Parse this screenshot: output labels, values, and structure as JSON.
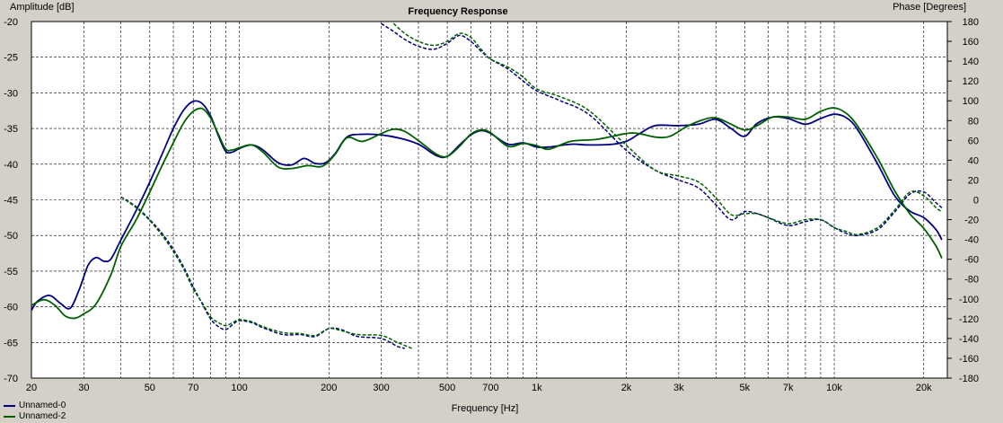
{
  "chart_data": {
    "type": "line",
    "title": "Frequency Response",
    "xlabel": "Frequency [Hz]",
    "ylabel_left": "Amplitude [dB]",
    "ylabel_right": "Phase [Degrees]",
    "x_scale": "log",
    "xlim": [
      20,
      24000
    ],
    "ylim_left": [
      -70,
      -20
    ],
    "ylim_right": [
      -180,
      180
    ],
    "grid": true,
    "legend_position": "bottom-left",
    "x_tick_labels": [
      "20",
      "30",
      "50",
      "70",
      "100",
      "200",
      "300",
      "500",
      "700",
      "1k",
      "2k",
      "3k",
      "5k",
      "7k",
      "10k",
      "20k"
    ],
    "x_tick_values": [
      20,
      30,
      50,
      70,
      100,
      200,
      300,
      500,
      700,
      1000,
      2000,
      3000,
      5000,
      7000,
      10000,
      20000
    ],
    "y_left_tick_labels": [
      "-20",
      "-25",
      "-30",
      "-35",
      "-40",
      "-45",
      "-50",
      "-55",
      "-60",
      "-65",
      "-70"
    ],
    "y_left_tick_values": [
      -20,
      -25,
      -30,
      -35,
      -40,
      -45,
      -50,
      -55,
      -60,
      -65,
      -70
    ],
    "y_right_tick_labels": [
      "180",
      "160",
      "140",
      "120",
      "100",
      "80",
      "60",
      "40",
      "20",
      "0",
      "-20",
      "-40",
      "-60",
      "-80",
      "-100",
      "-120",
      "-140",
      "-160",
      "-180"
    ],
    "y_right_tick_values": [
      180,
      160,
      140,
      120,
      100,
      80,
      60,
      40,
      20,
      0,
      -20,
      -40,
      -60,
      -80,
      -100,
      -120,
      -140,
      -160,
      -180
    ],
    "series": [
      {
        "name": "Unnamed-0",
        "color": "#000080",
        "amplitude": [
          [
            20,
            -60.5
          ],
          [
            21,
            -59.2
          ],
          [
            23,
            -58.4
          ],
          [
            25,
            -59.5
          ],
          [
            27,
            -60.2
          ],
          [
            29,
            -57.5
          ],
          [
            31,
            -54.2
          ],
          [
            33,
            -53.1
          ],
          [
            35,
            -53.6
          ],
          [
            37,
            -53.3
          ],
          [
            40,
            -50.6
          ],
          [
            45,
            -46.5
          ],
          [
            50,
            -42.5
          ],
          [
            55,
            -38.6
          ],
          [
            60,
            -35.0
          ],
          [
            65,
            -32.4
          ],
          [
            70,
            -31.2
          ],
          [
            75,
            -31.5
          ],
          [
            80,
            -33.2
          ],
          [
            85,
            -36.0
          ],
          [
            90,
            -38.2
          ],
          [
            95,
            -38.3
          ],
          [
            100,
            -37.8
          ],
          [
            110,
            -37.3
          ],
          [
            120,
            -38.0
          ],
          [
            135,
            -39.8
          ],
          [
            150,
            -40.1
          ],
          [
            165,
            -39.2
          ],
          [
            180,
            -39.9
          ],
          [
            195,
            -39.8
          ],
          [
            210,
            -38.5
          ],
          [
            230,
            -36.2
          ],
          [
            260,
            -35.8
          ],
          [
            300,
            -35.9
          ],
          [
            350,
            -36.4
          ],
          [
            400,
            -37.2
          ],
          [
            460,
            -38.8
          ],
          [
            500,
            -38.9
          ],
          [
            550,
            -37.3
          ],
          [
            600,
            -35.9
          ],
          [
            650,
            -35.3
          ],
          [
            700,
            -35.7
          ],
          [
            800,
            -37.2
          ],
          [
            900,
            -37.0
          ],
          [
            1000,
            -37.6
          ],
          [
            1100,
            -37.6
          ],
          [
            1300,
            -37.2
          ],
          [
            1500,
            -37.3
          ],
          [
            1800,
            -37.2
          ],
          [
            2000,
            -36.8
          ],
          [
            2200,
            -35.8
          ],
          [
            2500,
            -34.6
          ],
          [
            3000,
            -34.6
          ],
          [
            3500,
            -34.4
          ],
          [
            4000,
            -33.7
          ],
          [
            4500,
            -35.0
          ],
          [
            5000,
            -36.1
          ],
          [
            5500,
            -34.3
          ],
          [
            6200,
            -33.4
          ],
          [
            7000,
            -33.6
          ],
          [
            8000,
            -34.4
          ],
          [
            9000,
            -33.6
          ],
          [
            10000,
            -33.0
          ],
          [
            11000,
            -33.5
          ],
          [
            12000,
            -35.2
          ],
          [
            14000,
            -40.0
          ],
          [
            16000,
            -44.5
          ],
          [
            18000,
            -46.6
          ],
          [
            20000,
            -47.5
          ],
          [
            22000,
            -49.2
          ],
          [
            23000,
            -50.6
          ]
        ],
        "phase": [
          [
            40,
            3
          ],
          [
            45,
            -7
          ],
          [
            50,
            -20
          ],
          [
            55,
            -34
          ],
          [
            60,
            -50
          ],
          [
            65,
            -68
          ],
          [
            70,
            -88
          ],
          [
            75,
            -105
          ],
          [
            80,
            -120
          ],
          [
            85,
            -128
          ],
          [
            90,
            -131
          ],
          [
            95,
            -126
          ],
          [
            100,
            -122
          ],
          [
            110,
            -124
          ],
          [
            120,
            -129
          ],
          [
            140,
            -136
          ],
          [
            160,
            -136
          ],
          [
            180,
            -138
          ],
          [
            200,
            -130
          ],
          [
            220,
            -131
          ],
          [
            250,
            -138
          ],
          [
            300,
            -140
          ],
          [
            340,
            -148
          ],
          [
            360,
            -150
          ]
        ],
        "phase_high": [
          [
            300,
            178
          ],
          [
            330,
            170
          ],
          [
            360,
            162
          ],
          [
            400,
            155
          ],
          [
            450,
            152
          ],
          [
            500,
            158
          ],
          [
            550,
            166
          ],
          [
            600,
            160
          ],
          [
            650,
            150
          ],
          [
            700,
            142
          ],
          [
            800,
            132
          ],
          [
            900,
            120
          ],
          [
            1000,
            110
          ],
          [
            1200,
            100
          ],
          [
            1500,
            86
          ],
          [
            2000,
            50
          ],
          [
            2500,
            30
          ],
          [
            3000,
            20
          ],
          [
            3500,
            12
          ],
          [
            4000,
            -5
          ],
          [
            4500,
            -20
          ],
          [
            5000,
            -12
          ],
          [
            5500,
            -14
          ],
          [
            6000,
            -18
          ],
          [
            7000,
            -26
          ],
          [
            8000,
            -22
          ],
          [
            9000,
            -20
          ],
          [
            10000,
            -28
          ],
          [
            11000,
            -34
          ],
          [
            12000,
            -36
          ],
          [
            14000,
            -30
          ],
          [
            16000,
            -12
          ],
          [
            18000,
            6
          ],
          [
            20000,
            8
          ],
          [
            22000,
            -3
          ],
          [
            23000,
            -8
          ]
        ]
      },
      {
        "name": "Unnamed-2",
        "color": "#006000",
        "amplitude": [
          [
            20,
            -59.8
          ],
          [
            22,
            -59.0
          ],
          [
            24,
            -59.8
          ],
          [
            26,
            -61.3
          ],
          [
            28,
            -61.6
          ],
          [
            30,
            -61.0
          ],
          [
            33,
            -59.6
          ],
          [
            37,
            -55.5
          ],
          [
            40,
            -51.5
          ],
          [
            45,
            -47.8
          ],
          [
            50,
            -43.9
          ],
          [
            55,
            -40.2
          ],
          [
            60,
            -37.0
          ],
          [
            65,
            -34.2
          ],
          [
            70,
            -32.6
          ],
          [
            75,
            -32.2
          ],
          [
            80,
            -33.5
          ],
          [
            85,
            -35.8
          ],
          [
            90,
            -37.9
          ],
          [
            95,
            -38.0
          ],
          [
            100,
            -37.7
          ],
          [
            110,
            -37.3
          ],
          [
            120,
            -38.3
          ],
          [
            135,
            -40.4
          ],
          [
            150,
            -40.6
          ],
          [
            170,
            -40.2
          ],
          [
            190,
            -40.3
          ],
          [
            210,
            -38.6
          ],
          [
            230,
            -36.3
          ],
          [
            260,
            -36.8
          ],
          [
            300,
            -35.7
          ],
          [
            330,
            -35.1
          ],
          [
            360,
            -35.4
          ],
          [
            400,
            -36.7
          ],
          [
            460,
            -38.6
          ],
          [
            500,
            -38.9
          ],
          [
            550,
            -37.5
          ],
          [
            600,
            -35.8
          ],
          [
            650,
            -35.2
          ],
          [
            700,
            -35.6
          ],
          [
            800,
            -37.5
          ],
          [
            900,
            -37.1
          ],
          [
            1000,
            -37.4
          ],
          [
            1100,
            -37.9
          ],
          [
            1300,
            -36.8
          ],
          [
            1600,
            -36.5
          ],
          [
            2000,
            -35.7
          ],
          [
            2200,
            -35.7
          ],
          [
            2500,
            -36.2
          ],
          [
            2800,
            -36.1
          ],
          [
            3200,
            -34.7
          ],
          [
            3600,
            -33.8
          ],
          [
            4000,
            -33.5
          ],
          [
            4500,
            -34.4
          ],
          [
            5000,
            -35.2
          ],
          [
            5500,
            -34.6
          ],
          [
            6200,
            -33.4
          ],
          [
            7000,
            -33.4
          ],
          [
            8000,
            -33.7
          ],
          [
            9000,
            -32.6
          ],
          [
            10000,
            -32.1
          ],
          [
            11000,
            -32.9
          ],
          [
            12000,
            -34.7
          ],
          [
            14000,
            -39.2
          ],
          [
            16000,
            -43.8
          ],
          [
            18000,
            -47.0
          ],
          [
            20000,
            -49.0
          ],
          [
            22000,
            -51.5
          ],
          [
            23000,
            -53.2
          ]
        ],
        "phase": [
          [
            40,
            3
          ],
          [
            45,
            -8
          ],
          [
            50,
            -21
          ],
          [
            55,
            -36
          ],
          [
            60,
            -52
          ],
          [
            65,
            -70
          ],
          [
            70,
            -90
          ],
          [
            75,
            -104
          ],
          [
            80,
            -118
          ],
          [
            85,
            -124
          ],
          [
            90,
            -127
          ],
          [
            95,
            -124
          ],
          [
            100,
            -121
          ],
          [
            110,
            -123
          ],
          [
            120,
            -128
          ],
          [
            140,
            -134
          ],
          [
            160,
            -135
          ],
          [
            180,
            -137
          ],
          [
            200,
            -130
          ],
          [
            220,
            -132
          ],
          [
            250,
            -136
          ],
          [
            300,
            -137
          ],
          [
            340,
            -144
          ],
          [
            380,
            -150
          ]
        ],
        "phase_high": [
          [
            330,
            178
          ],
          [
            360,
            168
          ],
          [
            400,
            160
          ],
          [
            450,
            156
          ],
          [
            500,
            160
          ],
          [
            550,
            168
          ],
          [
            600,
            164
          ],
          [
            650,
            152
          ],
          [
            700,
            142
          ],
          [
            800,
            134
          ],
          [
            900,
            124
          ],
          [
            1000,
            112
          ],
          [
            1200,
            104
          ],
          [
            1500,
            90
          ],
          [
            2000,
            55
          ],
          [
            2500,
            30
          ],
          [
            3000,
            24
          ],
          [
            3500,
            18
          ],
          [
            4000,
            2
          ],
          [
            4500,
            -15
          ],
          [
            5000,
            -14
          ],
          [
            5500,
            -14
          ],
          [
            6000,
            -18
          ],
          [
            7000,
            -24
          ],
          [
            8000,
            -20
          ],
          [
            9000,
            -20
          ],
          [
            10000,
            -28
          ],
          [
            11000,
            -32
          ],
          [
            12000,
            -35
          ],
          [
            14000,
            -28
          ],
          [
            16000,
            -10
          ],
          [
            18000,
            8
          ],
          [
            20000,
            4
          ],
          [
            22000,
            -8
          ],
          [
            23000,
            -12
          ]
        ]
      }
    ]
  }
}
